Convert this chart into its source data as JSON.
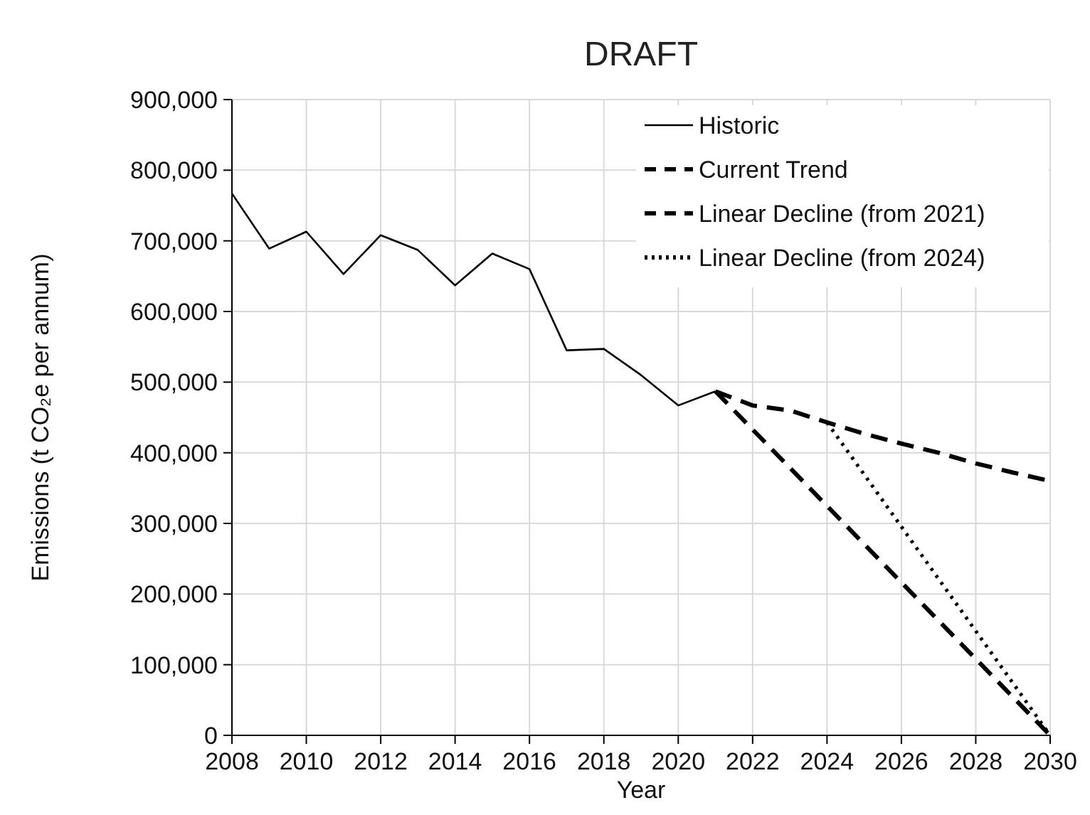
{
  "chart_data": {
    "type": "line",
    "title": "DRAFT",
    "xlabel": "Year",
    "ylabel": "Emissions (t CO₂e per annum)",
    "xlim": [
      2008,
      2030
    ],
    "xticks": [
      2008,
      2010,
      2012,
      2014,
      2016,
      2018,
      2020,
      2022,
      2024,
      2026,
      2028,
      2030
    ],
    "ylim": [
      0,
      900000
    ],
    "yticks": [
      {
        "value": 0,
        "label": "0"
      },
      {
        "value": 100000,
        "label": "100,000"
      },
      {
        "value": 200000,
        "label": "200,000"
      },
      {
        "value": 300000,
        "label": "300,000"
      },
      {
        "value": 400000,
        "label": "400,000"
      },
      {
        "value": 500000,
        "label": "500,000"
      },
      {
        "value": 600000,
        "label": "600,000"
      },
      {
        "value": 700000,
        "label": "700,000"
      },
      {
        "value": 800000,
        "label": "800,000"
      },
      {
        "value": 900000,
        "label": "900,000"
      }
    ],
    "grid": true,
    "legend": "top right",
    "marker": "none",
    "series": [
      {
        "name": "Historic",
        "color": "#000000",
        "line_style": "solid",
        "x": [
          2008,
          2009,
          2010,
          2011,
          2012,
          2013,
          2014,
          2015,
          2016,
          2017,
          2018,
          2019,
          2020,
          2021
        ],
        "values": [
          767000,
          689000,
          713000,
          653000,
          708000,
          687000,
          637000,
          682000,
          660000,
          545000,
          547000,
          510000,
          467000,
          487000
        ]
      },
      {
        "name": "Current Trend",
        "color": "#000000",
        "line_style": "dashed",
        "x": [
          2021,
          2022,
          2023,
          2024,
          2025,
          2026,
          2027,
          2028,
          2029,
          2030
        ],
        "values": [
          487000,
          467000,
          460000,
          443000,
          427000,
          413000,
          400000,
          385000,
          372000,
          360000
        ]
      },
      {
        "name": "Linear Decline (from 2021)",
        "color": "#000000",
        "line_style": "dashed",
        "x": [
          2021,
          2030
        ],
        "values": [
          487000,
          0
        ]
      },
      {
        "name": "Linear Decline (from 2024)",
        "color": "#000000",
        "line_style": "dotted",
        "x": [
          2024,
          2030
        ],
        "values": [
          443000,
          0
        ]
      }
    ]
  }
}
